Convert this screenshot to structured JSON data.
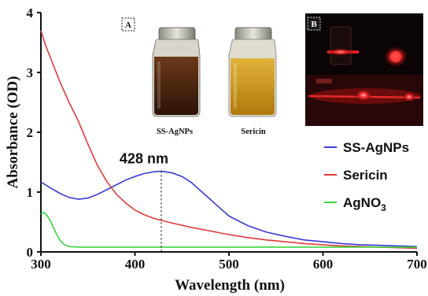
{
  "chart_data": {
    "type": "line",
    "xlabel": "Wavelength (nm)",
    "ylabel": "Absorbance (OD)",
    "xlim": [
      300,
      700
    ],
    "ylim": [
      0,
      4
    ],
    "xticks": [
      "300",
      "400",
      "500",
      "600",
      "700"
    ],
    "yticks": [
      "0",
      "1",
      "2",
      "3",
      "4"
    ],
    "grid": false,
    "legend_position": "right",
    "series": [
      {
        "name": "SS-AgNPs",
        "color": "#3a3ad6",
        "x": [
          300,
          310,
          320,
          330,
          340,
          350,
          360,
          370,
          380,
          390,
          400,
          410,
          420,
          428,
          440,
          450,
          460,
          470,
          480,
          490,
          500,
          520,
          540,
          560,
          580,
          600,
          620,
          640,
          660,
          680,
          700
        ],
        "y": [
          1.17,
          1.07,
          0.98,
          0.91,
          0.88,
          0.9,
          0.96,
          1.04,
          1.12,
          1.2,
          1.26,
          1.31,
          1.34,
          1.35,
          1.32,
          1.26,
          1.16,
          1.02,
          0.88,
          0.74,
          0.6,
          0.44,
          0.33,
          0.26,
          0.2,
          0.17,
          0.14,
          0.12,
          0.11,
          0.1,
          0.09
        ]
      },
      {
        "name": "Sericin",
        "color": "#e03a3a",
        "x": [
          300,
          305,
          310,
          320,
          330,
          340,
          350,
          360,
          370,
          380,
          390,
          400,
          410,
          420,
          430,
          440,
          460,
          480,
          500,
          520,
          540,
          560,
          580,
          600,
          620,
          640,
          660,
          680,
          700
        ],
        "y": [
          3.7,
          3.45,
          3.25,
          2.85,
          2.5,
          2.18,
          1.8,
          1.45,
          1.18,
          0.97,
          0.82,
          0.7,
          0.62,
          0.56,
          0.52,
          0.48,
          0.41,
          0.35,
          0.29,
          0.24,
          0.2,
          0.17,
          0.14,
          0.12,
          0.1,
          0.09,
          0.08,
          0.07,
          0.06
        ]
      },
      {
        "name": "AgNO",
        "name_subscript": "3",
        "color": "#3bd63b",
        "x": [
          300,
          303,
          306,
          310,
          315,
          320,
          325,
          330,
          340,
          360,
          400,
          500,
          600,
          700
        ],
        "y": [
          0.63,
          0.66,
          0.62,
          0.52,
          0.35,
          0.2,
          0.12,
          0.09,
          0.08,
          0.08,
          0.08,
          0.08,
          0.08,
          0.08
        ]
      }
    ],
    "annotations": [
      {
        "text": "428 nm",
        "x": 428,
        "y": 1.35,
        "style": "dotted vertical line to axis"
      }
    ]
  },
  "inset_a": {
    "tag": "A",
    "captions": [
      "SS-AgNPs",
      "Sericin"
    ],
    "vial_colors": [
      "#4a2410",
      "#c98f12"
    ]
  },
  "inset_b": {
    "tag": "B",
    "laser_color": "#ff2020"
  }
}
